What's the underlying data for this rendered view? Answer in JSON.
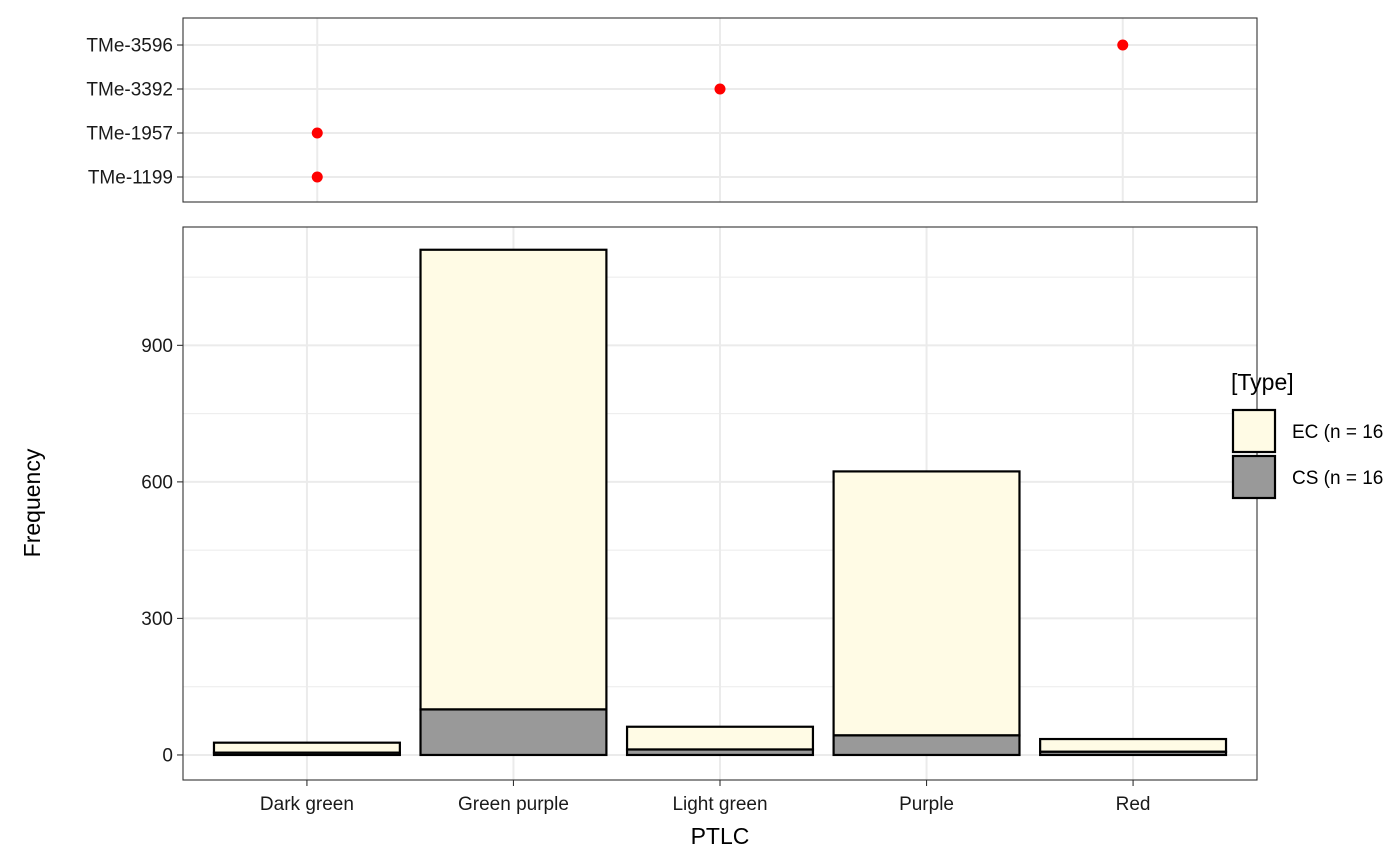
{
  "colors": {
    "ec_fill": "#FFFBE5",
    "cs_fill": "#999999",
    "point": "#FF0000",
    "grid_major": "#EBEBEB",
    "panel_border": "#333333",
    "bar_outline": "#000000"
  },
  "chart_data": [
    {
      "type": "scatter",
      "panel": "top",
      "categories": [
        "Dark green",
        "Green purple",
        "Light green",
        "Purple",
        "Red"
      ],
      "y_categories": [
        "TMe-1199",
        "TMe-1957",
        "TMe-3392",
        "TMe-3596"
      ],
      "points": [
        {
          "x": "Dark green",
          "y": "TMe-1199"
        },
        {
          "x": "Dark green",
          "y": "TMe-1957"
        },
        {
          "x": "Light green",
          "y": "TMe-3392"
        },
        {
          "x": "Red",
          "y": "TMe-3596"
        }
      ],
      "point_x_positions": [
        1,
        1,
        2.5,
        4
      ],
      "x_domain": [
        0.5,
        4.5
      ],
      "grid": true
    },
    {
      "type": "bar",
      "panel": "bottom",
      "stacked": true,
      "categories": [
        "Dark green",
        "Green purple",
        "Light green",
        "Purple",
        "Red"
      ],
      "series": [
        {
          "name": "CS (n = 16",
          "values": [
            5,
            100,
            12,
            43,
            7
          ]
        },
        {
          "name": "EC (n = 16",
          "values": [
            22,
            1010,
            50,
            580,
            28
          ]
        }
      ],
      "xlabel": "PTLC",
      "ylabel": "Frequency",
      "yticks": [
        0,
        300,
        600,
        900
      ],
      "ylim": [
        -55,
        1160
      ],
      "legend": {
        "title": "[Type]",
        "position": "right",
        "entries": [
          {
            "label": "EC (n = 16",
            "series": "EC"
          },
          {
            "label": "CS (n = 16",
            "series": "CS"
          }
        ]
      },
      "grid": true
    }
  ]
}
